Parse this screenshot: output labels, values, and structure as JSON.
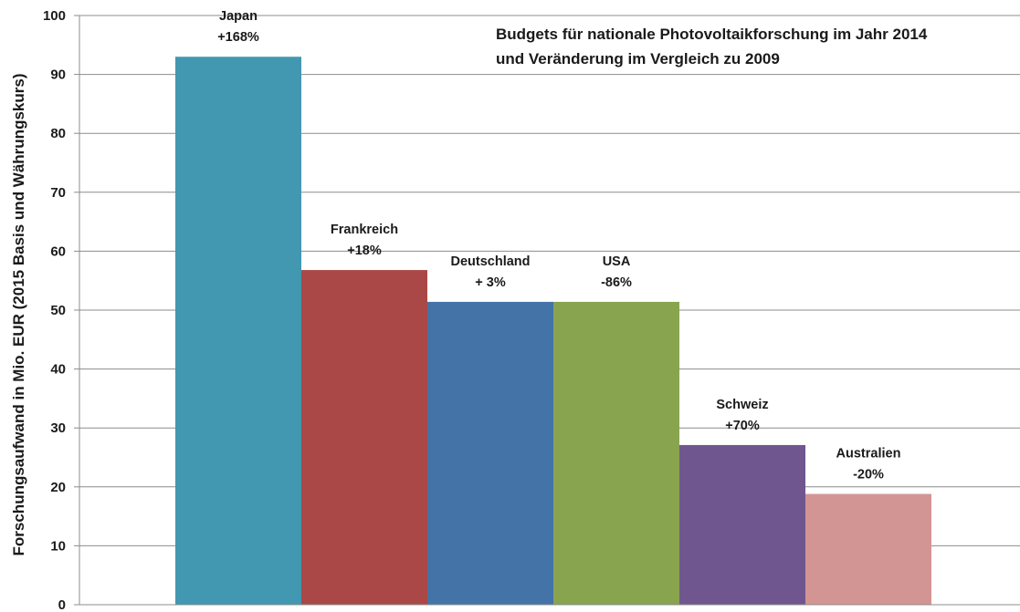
{
  "chart_data": {
    "type": "bar",
    "title": [
      "Budgets für nationale Photovoltaikforschung  im Jahr 2014",
      "und Veränderung im Vergleich zu 2009"
    ],
    "ylabel": "Forschungsaufwand in Mio. EUR (2015 Basis und Währungskurs)",
    "ylim": [
      0,
      100
    ],
    "yticks": [
      0,
      10,
      20,
      30,
      40,
      50,
      60,
      70,
      80,
      90,
      100
    ],
    "grid": true,
    "categories": [
      {
        "name": "Japan",
        "change": "+168%",
        "value": 93,
        "color": "#4198B0"
      },
      {
        "name": "Frankreich",
        "change": "+18%",
        "value": 56.8,
        "color": "#A94846"
      },
      {
        "name": "Deutschland",
        "change": "+ 3%",
        "value": 51.4,
        "color": "#4473A8"
      },
      {
        "name": "USA",
        "change": "-86%",
        "value": 51.4,
        "color": "#88A44F"
      },
      {
        "name": "Schweiz",
        "change": "+70%",
        "value": 27.1,
        "color": "#70568F"
      },
      {
        "name": "Australien",
        "change": "-20%",
        "value": 18.8,
        "color": "#D39594"
      }
    ]
  }
}
